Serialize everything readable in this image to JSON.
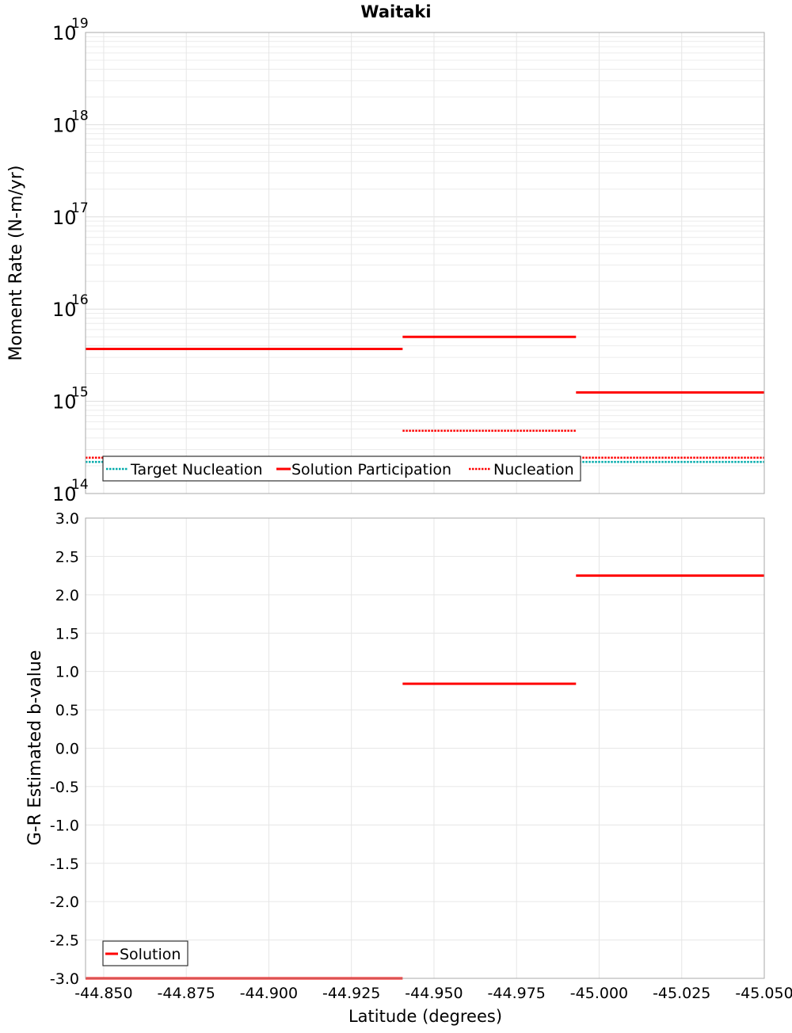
{
  "chart_data": [
    {
      "type": "line",
      "title": "Waitaki",
      "ylabel": "Moment Rate (N-m/yr)",
      "yscale": "log",
      "ylim_exponents": [
        14,
        19
      ],
      "ytick_base": "10",
      "ytick_exponents": [
        "14",
        "15",
        "16",
        "17",
        "18",
        "19"
      ],
      "xlim": [
        -44.8445,
        -45.05
      ],
      "x_reversed": true,
      "grid": true,
      "legend_placement": "bottom-left",
      "series": [
        {
          "name": "Target Nucleation",
          "color": "#00aaaa",
          "style": "dotted",
          "segments": [
            {
              "x": [
                -44.8445,
                -44.9405
              ],
              "y": 220000000000000.0
            },
            {
              "x": [
                -44.9405,
                -44.993
              ],
              "y": 220000000000000.0
            },
            {
              "x": [
                -44.993,
                -45.05
              ],
              "y": 220000000000000.0
            }
          ]
        },
        {
          "name": "Solution Participation",
          "color": "#ff0000",
          "style": "solid",
          "segments": [
            {
              "x": [
                -44.8445,
                -44.9405
              ],
              "y": 3700000000000000.0
            },
            {
              "x": [
                -44.9405,
                -44.993
              ],
              "y": 5000000000000000.0
            },
            {
              "x": [
                -44.993,
                -45.05
              ],
              "y": 1250000000000000.0
            }
          ]
        },
        {
          "name": "Nucleation",
          "color": "#ff0000",
          "style": "dotted",
          "segments": [
            {
              "x": [
                -44.8445,
                -44.9405
              ],
              "y": 245000000000000.0
            },
            {
              "x": [
                -44.9405,
                -44.993
              ],
              "y": 480000000000000.0
            },
            {
              "x": [
                -44.993,
                -45.05
              ],
              "y": 245000000000000.0
            }
          ]
        }
      ]
    },
    {
      "type": "line",
      "title": "",
      "xlabel": "Latitude (degrees)",
      "ylabel": "G-R Estimated b-value",
      "ylim": [
        -3.0,
        3.0
      ],
      "yticks": [
        "3.0",
        "2.5",
        "2.0",
        "1.5",
        "1.0",
        "0.5",
        "0.0",
        "-0.5",
        "-1.0",
        "-1.5",
        "-2.0",
        "-2.5",
        "-3.0"
      ],
      "xlim": [
        -44.8445,
        -45.05
      ],
      "x_reversed": true,
      "xticks": [
        "-44.850",
        "-44.875",
        "-44.900",
        "-44.925",
        "-44.950",
        "-44.975",
        "-45.000",
        "-45.025",
        "-45.050"
      ],
      "grid": true,
      "legend_placement": "bottom-left",
      "series": [
        {
          "name": "Solution",
          "color": "#ff0000",
          "style": "solid",
          "segments": [
            {
              "x": [
                -44.8445,
                -44.9405
              ],
              "y": -3.0
            },
            {
              "x": [
                -44.9405,
                -44.993
              ],
              "y": 0.84
            },
            {
              "x": [
                -44.993,
                -45.05
              ],
              "y": 2.25
            }
          ]
        }
      ]
    }
  ]
}
